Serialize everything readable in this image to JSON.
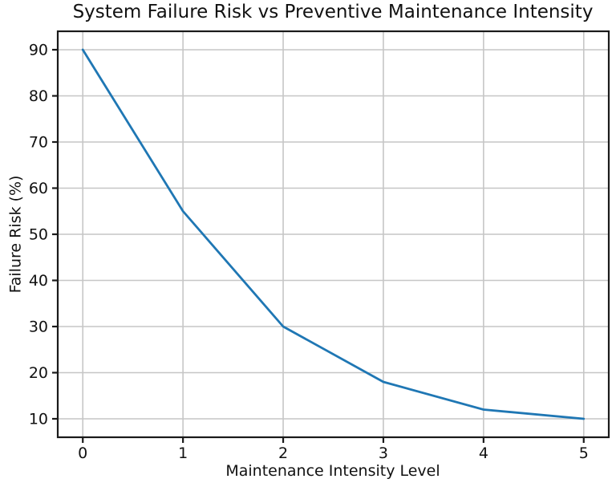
{
  "chart_data": {
    "type": "line",
    "title": "System Failure Risk vs Preventive Maintenance Intensity",
    "xlabel": "Maintenance Intensity Level",
    "ylabel": "Failure Risk (%)",
    "x": [
      0,
      1,
      2,
      3,
      4,
      5
    ],
    "series": [
      {
        "name": "Failure Risk",
        "values": [
          90,
          55,
          30,
          18,
          12,
          10
        ]
      }
    ],
    "xticks": [
      "0",
      "1",
      "2",
      "3",
      "4",
      "5"
    ],
    "xtick_values": [
      0,
      1,
      2,
      3,
      4,
      5
    ],
    "yticks": [
      "10",
      "20",
      "30",
      "40",
      "50",
      "60",
      "70",
      "80",
      "90"
    ],
    "ytick_values": [
      10,
      20,
      30,
      40,
      50,
      60,
      70,
      80,
      90
    ],
    "xlim": [
      -0.25,
      5.25
    ],
    "ylim": [
      6,
      94
    ],
    "grid": true,
    "legend": false,
    "colors": {
      "line": "#1f77b4",
      "grid": "#c6c6c6",
      "spine": "#1a1a1a",
      "text": "#111111",
      "background": "#ffffff"
    }
  }
}
